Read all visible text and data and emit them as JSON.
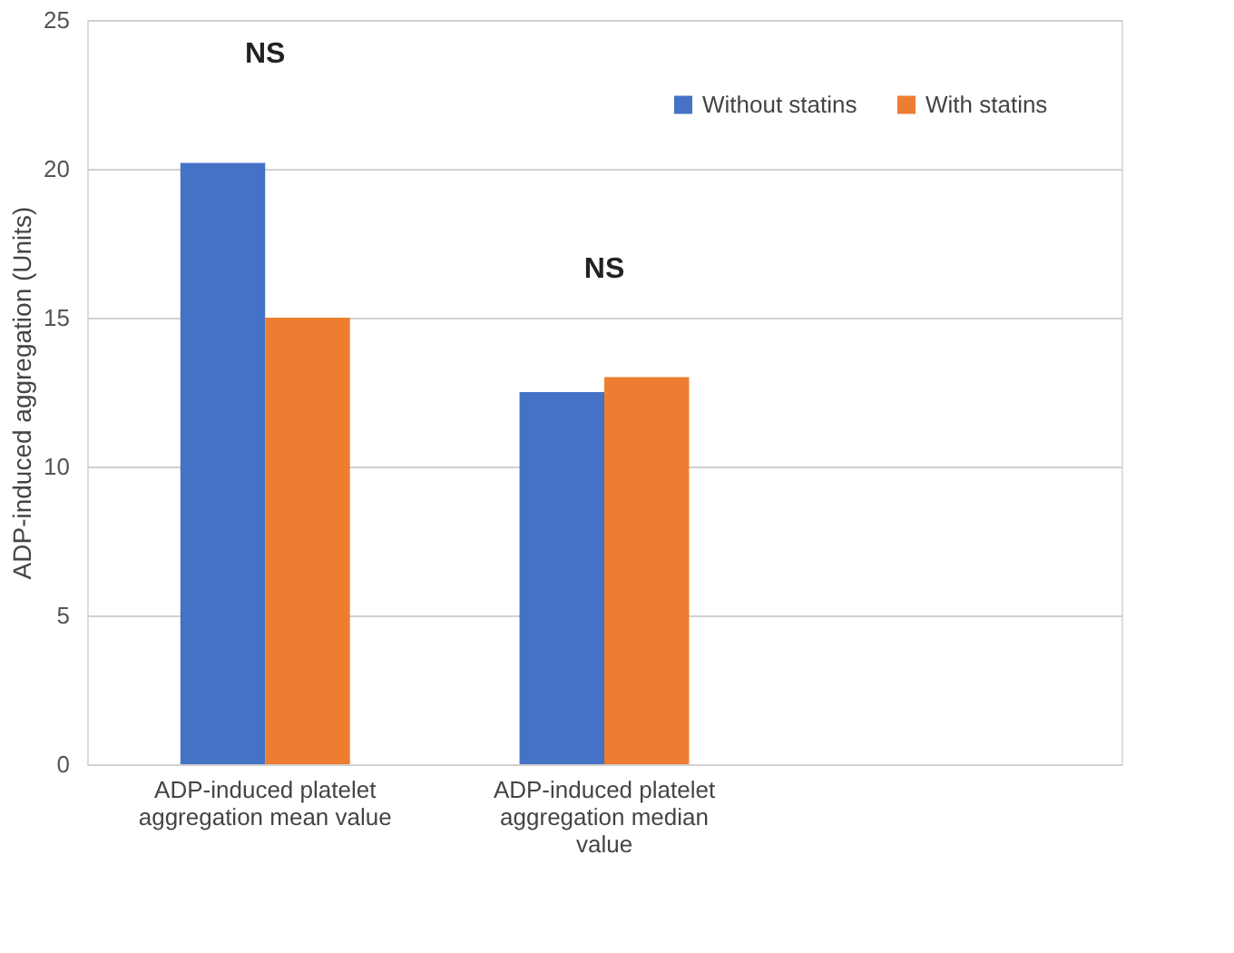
{
  "chart_data": {
    "type": "bar",
    "ylabel": "ADP-induced aggregation (Units)",
    "categories": [
      "ADP-induced platelet aggregation mean value",
      "ADP-induced platelet aggregation median value",
      null
    ],
    "series": [
      {
        "name": "Without statins",
        "color": "#4472c4",
        "values": [
          20.2,
          12.5,
          null
        ]
      },
      {
        "name": "With statins",
        "color": "#ed7d31",
        "values": [
          15.0,
          13.0,
          null
        ]
      }
    ],
    "ylim": [
      0,
      25
    ],
    "yticks": [
      0,
      5,
      10,
      15,
      20,
      25
    ],
    "grid": "y",
    "legend": "top right",
    "annotations": [
      "NS",
      "NS"
    ]
  }
}
